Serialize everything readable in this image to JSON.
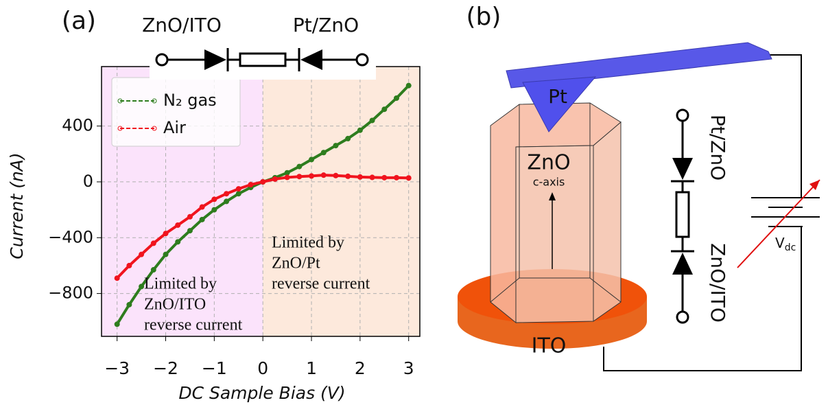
{
  "chart_data": {
    "type": "line",
    "panel_label": "(a)",
    "circuit_labels": [
      "ZnO/ITO",
      "Pt/ZnO"
    ],
    "xlabel": "DC Sample Bias (V)",
    "ylabel": "Current (nA)",
    "x": [
      -3,
      -2.75,
      -2.5,
      -2.25,
      -2,
      -1.75,
      -1.5,
      -1.25,
      -1,
      -0.75,
      -0.5,
      -0.25,
      0,
      0.25,
      0.5,
      0.75,
      1,
      1.25,
      1.5,
      1.75,
      2,
      2.25,
      2.5,
      2.75,
      3
    ],
    "series": [
      {
        "name": "N₂ gas",
        "color": "#2e7d1e",
        "values": [
          -1020,
          -880,
          -750,
          -630,
          -520,
          -430,
          -350,
          -270,
          -200,
          -140,
          -85,
          -40,
          0,
          30,
          65,
          110,
          160,
          210,
          260,
          310,
          370,
          440,
          520,
          600,
          690
        ]
      },
      {
        "name": "Air",
        "color": "#f0141e",
        "values": [
          -690,
          -600,
          -520,
          -440,
          -370,
          -310,
          -250,
          -180,
          -125,
          -85,
          -50,
          -20,
          0,
          20,
          32,
          38,
          42,
          48,
          45,
          40,
          35,
          32,
          30,
          30,
          28
        ]
      }
    ],
    "xlim": [
      -3.32,
      3.23
    ],
    "ylim": [
      -1107,
      826
    ],
    "xticks": [
      {
        "value": -3,
        "label": "−3"
      },
      {
        "value": -2,
        "label": "−2"
      },
      {
        "value": -1,
        "label": "−1"
      },
      0,
      1,
      2,
      3
    ],
    "yticks": [
      {
        "value": -800,
        "label": "−800"
      },
      {
        "value": -400,
        "label": "−400"
      },
      0,
      400
    ],
    "grid": true,
    "legend": "upper left",
    "annotations": [
      {
        "lines": [
          "Limited by",
          "ZnO/ITO",
          "reverse current"
        ]
      },
      {
        "lines": [
          "Limited by",
          "ZnO/Pt",
          "reverse  current"
        ]
      }
    ]
  },
  "diagram": {
    "panel_label": "(b)",
    "tip": "Pt",
    "crystal": "ZnO",
    "axis": "c-axis",
    "substrate": "ITO",
    "circuit_labels": [
      "Pt/ZnO",
      "ZnO/ITO"
    ],
    "voltage": {
      "main": "V",
      "sub": "dc"
    }
  }
}
